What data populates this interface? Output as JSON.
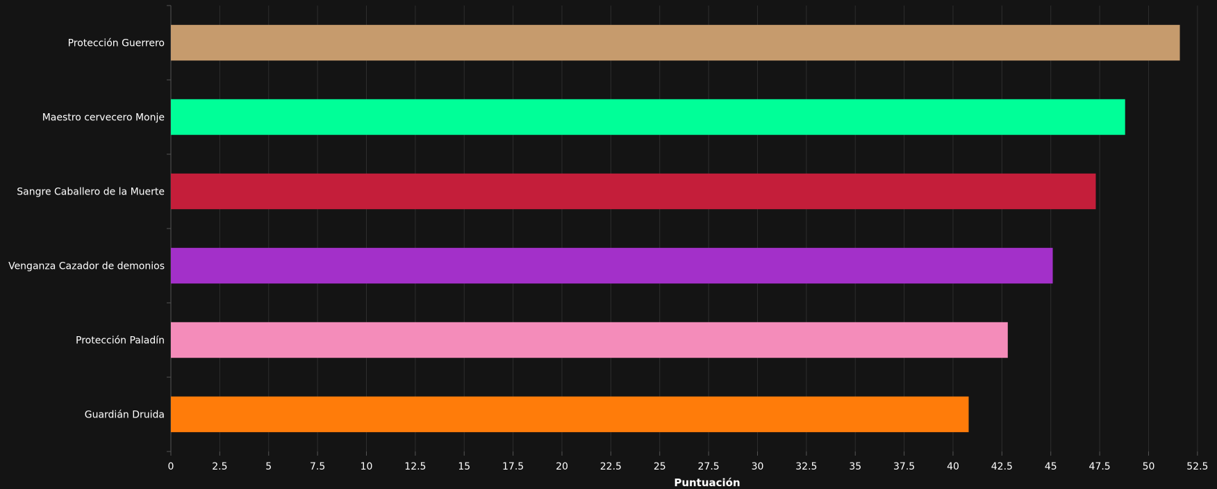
{
  "chart_data": {
    "type": "bar",
    "orientation": "horizontal",
    "xlabel": "Puntuación",
    "xlim": [
      0,
      53.5
    ],
    "xticks": [
      0,
      2.5,
      5,
      7.5,
      10,
      12.5,
      15,
      17.5,
      20,
      22.5,
      25,
      27.5,
      30,
      32.5,
      35,
      37.5,
      40,
      42.5,
      45,
      47.5,
      50,
      52.5
    ],
    "grid": true,
    "categories": [
      "Protección Guerrero",
      "Maestro cervecero Monje",
      "Sangre Caballero de la Muerte",
      "Venganza Cazador de demonios",
      "Protección Paladín",
      "Guardián Druida"
    ],
    "values": [
      51.6,
      48.8,
      47.3,
      45.1,
      42.8,
      40.8
    ],
    "colors": [
      "#c69b6d",
      "#00ff98",
      "#c41e3a",
      "#a330c9",
      "#f48cba",
      "#ff7c0a"
    ]
  }
}
